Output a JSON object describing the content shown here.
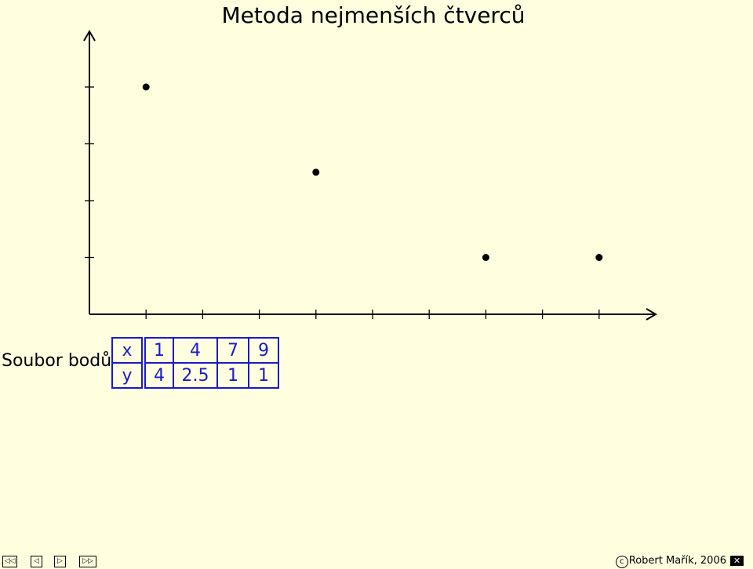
{
  "title": "Metoda nejmenších čtverců",
  "table_label": "Soubor bodů",
  "table": {
    "x_header": "x",
    "y_header": "y",
    "x_values": [
      "1",
      "4",
      "7",
      "9"
    ],
    "y_values": [
      "4",
      "2.5",
      "1",
      "1"
    ]
  },
  "chart_data": {
    "type": "scatter",
    "title": "Metoda nejmenších čtverců",
    "x": [
      1,
      4,
      7,
      9
    ],
    "y": [
      4,
      2.5,
      1,
      1
    ],
    "xlim": [
      0,
      10
    ],
    "ylim": [
      0,
      4.5
    ],
    "xticks": [
      0,
      1,
      2,
      3,
      4,
      5,
      6,
      7,
      8,
      9
    ],
    "yticks": [
      0,
      1,
      2,
      3,
      4
    ],
    "xlabel": "",
    "ylabel": "",
    "grid": false,
    "point_color": "#000000"
  },
  "nav": {
    "first": "first-page",
    "prev": "previous-page",
    "next": "next-page",
    "last": "last-page"
  },
  "footer": {
    "copyright_symbol": "c",
    "copyright_text": "Robert Mařík, 2006",
    "close_symbol": "✕"
  },
  "colors": {
    "background": "#ffffe0",
    "table_border": "#1a1acc"
  }
}
